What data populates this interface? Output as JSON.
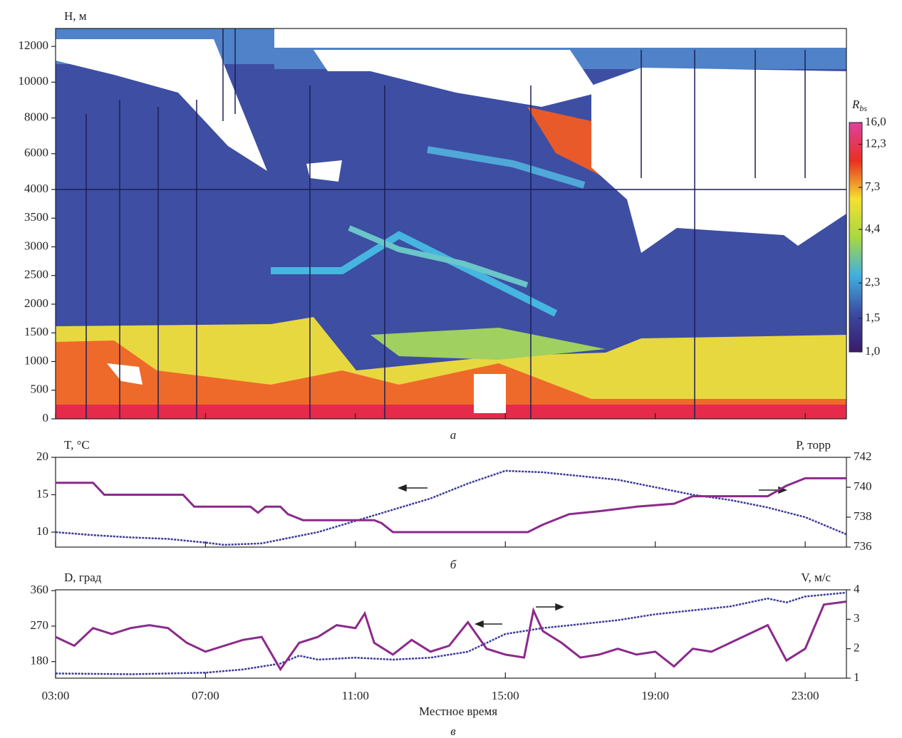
{
  "chart_data": [
    {
      "type": "heatmap",
      "panel_label": "а",
      "ylabel": "H, м",
      "xlim": [
        3,
        24.1
      ],
      "xticks": [
        3,
        7,
        11,
        15,
        19,
        23
      ],
      "ylim": [
        0,
        13000
      ],
      "yticks": [
        0,
        500,
        1000,
        1500,
        2000,
        2500,
        3000,
        3500,
        4000,
        6000,
        8000,
        10000,
        12000
      ],
      "y_scale_break": 4000,
      "colorbar_label": {
        "symbol": "R",
        "subscript": "bs"
      },
      "colorbar_scale": "log",
      "colorbar_lim": [
        1,
        16
      ],
      "colorbar_ticks": [
        {
          "value": 16,
          "label": "16,0"
        },
        {
          "value": 12.3,
          "label": "12,3"
        },
        {
          "value": 7.3,
          "label": "7,3"
        },
        {
          "value": 4.4,
          "label": "4,4"
        },
        {
          "value": 2.3,
          "label": "2,3"
        },
        {
          "value": 1.5,
          "label": "1,5"
        },
        {
          "value": 1,
          "label": "1,0"
        }
      ],
      "colormap": [
        "#3a1a6a",
        "#3b4aa0",
        "#40b0e0",
        "#a8d840",
        "#f5e030",
        "#e83020",
        "#e040a0"
      ]
    },
    {
      "type": "line",
      "panel_label": "б",
      "ylabel": "T, °C",
      "y2label": "P, торр",
      "xlim": [
        3,
        24.1
      ],
      "xticks": [
        3,
        7,
        11,
        15,
        19,
        23
      ],
      "ylim": [
        8,
        20
      ],
      "yticks": [
        10,
        15,
        20
      ],
      "y2lim": [
        736,
        742
      ],
      "y2ticks": [
        736,
        738,
        740,
        742
      ],
      "series": [
        {
          "color": "#3a3a9a",
          "x": [
            3,
            4,
            5,
            6,
            7,
            7.5,
            8,
            8.5,
            9,
            10,
            11,
            12,
            13,
            14,
            15,
            16,
            17,
            18,
            19,
            20,
            21,
            22,
            23,
            24.1
          ],
          "values": [
            10,
            9.6,
            9.3,
            9.1,
            8.6,
            8.3,
            8.4,
            8.5,
            9,
            10,
            11.5,
            13,
            14.5,
            16.5,
            18.2,
            18,
            17.5,
            17,
            16,
            15,
            14.3,
            13.3,
            12,
            9.7
          ]
        },
        {
          "color": "#8b2a8b",
          "axis": "y2",
          "x": [
            3,
            4,
            4.3,
            6.4,
            6.7,
            8.2,
            8.4,
            8.6,
            9,
            9.2,
            9.4,
            9.6,
            11.5,
            11.7,
            12,
            15.6,
            16,
            16.7,
            17.5,
            18.5,
            19.5,
            20,
            22,
            22.5,
            23,
            24.1
          ],
          "values": [
            740.3,
            740.3,
            739.5,
            739.5,
            738.7,
            738.7,
            738.3,
            738.7,
            738.7,
            738.2,
            738,
            737.8,
            737.8,
            737.6,
            737,
            737,
            737.5,
            738.2,
            738.4,
            738.7,
            738.9,
            739.4,
            739.4,
            740.1,
            740.6,
            740.6
          ]
        }
      ]
    },
    {
      "type": "line",
      "panel_label": "в",
      "ylabel": "D, град",
      "y2label": "V, м/с",
      "xlabel": "Местное время",
      "xlim": [
        3,
        24.1
      ],
      "xticks": [
        {
          "value": 3,
          "label": "03:00"
        },
        {
          "value": 7,
          "label": "07:00"
        },
        {
          "value": 11,
          "label": "11:00"
        },
        {
          "value": 15,
          "label": "15:00"
        },
        {
          "value": 19,
          "label": "19:00"
        },
        {
          "value": 23,
          "label": "23:00"
        }
      ],
      "ylim": [
        138,
        362
      ],
      "yticks": [
        180,
        270,
        360
      ],
      "y2lim": [
        1,
        4
      ],
      "y2ticks": [
        1,
        2,
        3,
        4
      ],
      "series": [
        {
          "color": "#3a3a9a",
          "x": [
            3,
            5,
            7,
            8,
            9,
            9.5,
            10,
            11,
            12,
            13,
            14,
            15,
            16,
            17,
            18,
            19,
            20,
            21,
            22,
            22.5,
            23,
            24.1
          ],
          "values": [
            150,
            148,
            152,
            160,
            175,
            195,
            185,
            190,
            185,
            190,
            205,
            250,
            265,
            275,
            285,
            300,
            310,
            320,
            340,
            330,
            345,
            355
          ]
        },
        {
          "color": "#8b2a8b",
          "axis": "y2",
          "x": [
            3,
            3.5,
            4,
            4.5,
            5,
            5.5,
            6,
            6.5,
            7,
            7.5,
            8,
            8.5,
            9,
            9.5,
            10,
            10.5,
            11,
            11.25,
            11.5,
            12,
            12.5,
            13,
            13.5,
            14,
            14.5,
            15,
            15.5,
            15.75,
            16,
            16.5,
            17,
            17.5,
            18,
            18.5,
            19,
            19.5,
            20,
            20.5,
            21,
            21.5,
            22,
            22.5,
            23,
            23.5,
            24.1
          ],
          "values": [
            2.4,
            2.1,
            2.7,
            2.5,
            2.7,
            2.8,
            2.7,
            2.2,
            1.9,
            2.1,
            2.3,
            2.4,
            1.3,
            2.2,
            2.4,
            2.8,
            2.7,
            3.2,
            2.2,
            1.8,
            2.3,
            1.9,
            2.1,
            2.9,
            2,
            1.8,
            1.7,
            3.3,
            2.6,
            2.2,
            1.7,
            1.8,
            2,
            1.8,
            1.9,
            1.4,
            2,
            1.9,
            2.2,
            2.5,
            2.8,
            1.6,
            2,
            3.5,
            3.6
          ]
        }
      ]
    }
  ]
}
